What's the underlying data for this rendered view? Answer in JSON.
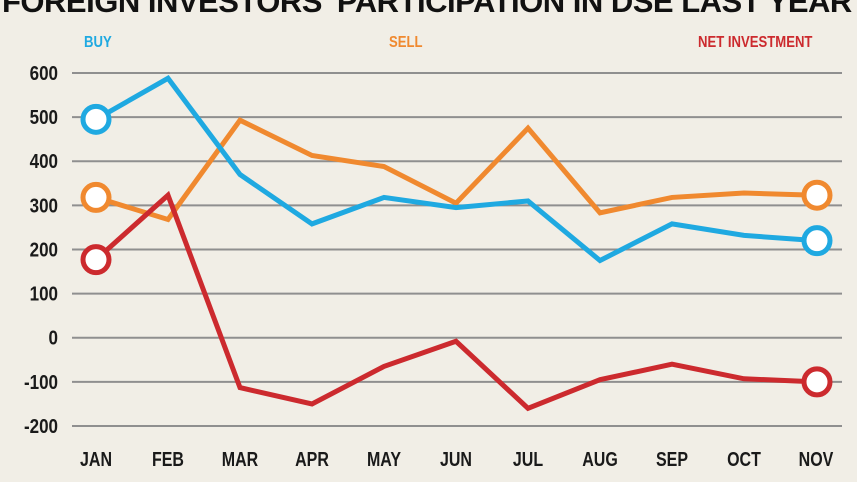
{
  "chart_data": {
    "type": "line",
    "title": "FOREIGN INVESTORS' PARTICIPATION IN DSE LAST YEAR",
    "categories": [
      "JAN",
      "FEB",
      "MAR",
      "APR",
      "MAY",
      "JUN",
      "JUL",
      "AUG",
      "SEP",
      "OCT",
      "NOV"
    ],
    "y_ticks": [
      600,
      500,
      400,
      300,
      200,
      100,
      0,
      -100,
      -200
    ],
    "ylim": [
      -200,
      600
    ],
    "grid": true,
    "legend_position": "top",
    "series": [
      {
        "name": "BUY",
        "color": "#1fa9e1",
        "values": [
          495,
          588,
          370,
          258,
          318,
          295,
          310,
          175,
          258,
          232,
          220
        ]
      },
      {
        "name": "SELL",
        "color": "#f0892f",
        "values": [
          318,
          268,
          493,
          413,
          388,
          305,
          475,
          283,
          318,
          328,
          323
        ]
      },
      {
        "name": "NET INVESTMENT",
        "color": "#cc2a2e",
        "values": [
          177,
          323,
          -113,
          -150,
          -65,
          -8,
          -160,
          -95,
          -60,
          -93,
          -100
        ]
      }
    ]
  }
}
